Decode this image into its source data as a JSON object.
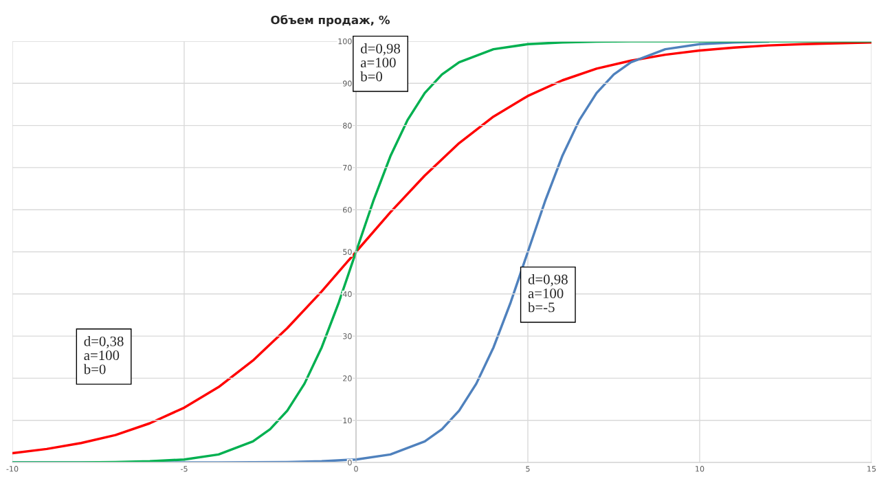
{
  "chart_data": {
    "type": "line",
    "title": "Объем продаж, %",
    "xlim": [
      -10,
      15
    ],
    "xticks": [
      -10,
      -5,
      0,
      5,
      10,
      15
    ],
    "ylim": [
      0,
      100
    ],
    "yticks": [
      0,
      10,
      20,
      30,
      40,
      50,
      60,
      70,
      80,
      90,
      100
    ],
    "grid": true,
    "marker": "none",
    "line_style": "solid",
    "series": [
      {
        "color": "#ff0000",
        "x": [
          -10,
          -9,
          -8,
          -7,
          -6,
          -5,
          -4,
          -3,
          -2,
          -1,
          0,
          1,
          2,
          3,
          4,
          5,
          6,
          7,
          8,
          9,
          10,
          11,
          12,
          13,
          14,
          15
        ],
        "values": [
          2.2,
          3.2,
          4.6,
          6.5,
          9.3,
          13.0,
          17.9,
          24.2,
          31.9,
          40.6,
          50,
          59.4,
          68.1,
          75.8,
          82.1,
          87.0,
          90.7,
          93.5,
          95.4,
          96.8,
          97.8,
          98.5,
          99.0,
          99.3,
          99.5,
          99.7
        ]
      },
      {
        "color": "#00b050",
        "x": [
          -10,
          -9,
          -8,
          -7,
          -6,
          -5,
          -4,
          -3,
          -2.5,
          -2,
          -1.5,
          -1,
          -0.5,
          0,
          0.5,
          1,
          1.5,
          2,
          2.5,
          3,
          4,
          5,
          6,
          7,
          8,
          9,
          10,
          11,
          12,
          13,
          14,
          15
        ],
        "values": [
          0,
          0,
          0,
          0.1,
          0.3,
          0.7,
          1.9,
          5.0,
          7.9,
          12.3,
          18.7,
          27.3,
          38.0,
          50,
          62.0,
          72.7,
          81.3,
          87.7,
          92.1,
          95.0,
          98.1,
          99.3,
          99.7,
          99.9,
          100,
          100,
          100,
          100,
          100,
          100,
          100,
          100
        ]
      },
      {
        "color": "#4f81bd",
        "x": [
          -10,
          -8,
          -6,
          -4,
          -2,
          -1,
          0,
          1,
          2,
          2.5,
          3,
          3.5,
          4,
          4.5,
          5,
          5.5,
          6,
          6.5,
          7,
          7.5,
          8,
          9,
          10,
          11,
          12
        ],
        "values": [
          0,
          0,
          0,
          0,
          0.1,
          0.3,
          0.7,
          1.9,
          5.0,
          7.9,
          12.3,
          18.7,
          27.3,
          38.0,
          50,
          62.0,
          72.7,
          81.3,
          87.7,
          92.1,
          95.0,
          98.1,
          99.3,
          99.7,
          99.9
        ]
      }
    ],
    "annotations": [
      "d=0,38\na=100\nb=0",
      "d=0,98\na=100\nb=0",
      "d=0,98\na=100\nb=-5"
    ]
  }
}
